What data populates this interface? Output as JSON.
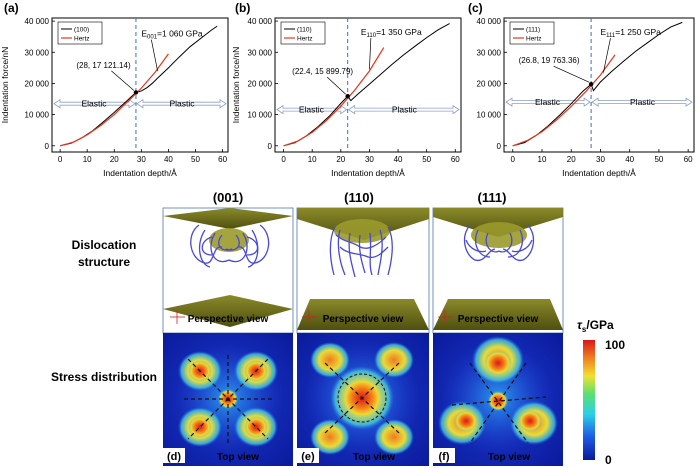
{
  "charts": [
    {
      "panel_label": "(a)",
      "legend": [
        "(100)",
        "Hertz"
      ],
      "modulus_prefix": "E",
      "modulus_sub": "001",
      "modulus_value": "=1 060 GPa",
      "point_label": "(28, 17 121.14)",
      "elastic_label": "Elastic",
      "plastic_label": "Plastic",
      "xlabel": "Indentation depth/Å",
      "ylabel": "Indentation force/nN",
      "show_ylabel": true
    },
    {
      "panel_label": "(b)",
      "legend": [
        "(110)",
        "Hertz"
      ],
      "modulus_prefix": "E",
      "modulus_sub": "110",
      "modulus_value": "=1 350 GPa",
      "point_label": "(22.4, 15 899.79)",
      "elastic_label": "Elastic",
      "plastic_label": "Plastic",
      "xlabel": "Indentation depth/Å",
      "ylabel": "Indentation force/nN",
      "show_ylabel": true
    },
    {
      "panel_label": "(c)",
      "legend": [
        "(111)",
        "Hertz"
      ],
      "modulus_prefix": "E",
      "modulus_sub": "111",
      "modulus_value": "=1 250 GPa",
      "point_label": "(26.8, 19 763.36)",
      "elastic_label": "Elastic",
      "plastic_label": "Plastic",
      "xlabel": "Indentation depth/Å",
      "ylabel": "Indentation force/nN",
      "show_ylabel": false
    }
  ],
  "chart_data": [
    {
      "type": "line",
      "title": "",
      "xlabel": "Indentation depth/Å",
      "ylabel": "Indentation force/nN",
      "xlim": [
        -3,
        62
      ],
      "ylim": [
        -2000,
        41000
      ],
      "xticks": [
        0,
        10,
        20,
        30,
        40,
        50,
        60
      ],
      "yticks": [
        0,
        10000,
        20000,
        30000,
        40000
      ],
      "ytick_labels": [
        "0",
        "10 000",
        "20 000",
        "30 000",
        "40 000"
      ],
      "series": [
        {
          "name": "(100)",
          "color": "#000000",
          "x": [
            0,
            4,
            8,
            12,
            16,
            20,
            24,
            28,
            30,
            32,
            34,
            36,
            40,
            44,
            48,
            52,
            56,
            58
          ],
          "y": [
            0,
            800,
            2500,
            4800,
            7700,
            10700,
            13900,
            17100,
            17600,
            18600,
            20000,
            21700,
            25000,
            28500,
            31800,
            34500,
            37200,
            38400
          ]
        },
        {
          "name": "Hertz",
          "color": "#e8341c",
          "x": [
            0,
            5,
            10,
            15,
            20,
            25,
            30,
            35,
            40
          ],
          "y": [
            0,
            1200,
            3500,
            6500,
            10000,
            14200,
            18500,
            23500,
            29500
          ]
        }
      ],
      "vline_x": 28
    },
    {
      "type": "line",
      "title": "",
      "xlabel": "Indentation depth/Å",
      "ylabel": "Indentation force/nN",
      "xlim": [
        -3,
        62
      ],
      "ylim": [
        -2000,
        41000
      ],
      "xticks": [
        0,
        10,
        20,
        30,
        40,
        50,
        60
      ],
      "yticks": [
        0,
        10000,
        20000,
        30000,
        40000
      ],
      "ytick_labels": [
        "0",
        "10 000",
        "20 000",
        "30 000",
        "40 000"
      ],
      "series": [
        {
          "name": "(110)",
          "color": "#000000",
          "x": [
            0,
            4,
            8,
            12,
            16,
            20,
            22.4,
            23.5,
            26,
            30,
            34,
            38,
            42,
            46,
            50,
            54,
            58
          ],
          "y": [
            0,
            1000,
            3200,
            6100,
            9500,
            13600,
            15900,
            14500,
            16600,
            19800,
            23000,
            26200,
            29200,
            32000,
            34700,
            37200,
            39200
          ]
        },
        {
          "name": "Hertz",
          "color": "#e8341c",
          "x": [
            0,
            5,
            10,
            15,
            20,
            25,
            30,
            35
          ],
          "y": [
            0,
            1500,
            4300,
            8100,
            12700,
            18000,
            24000,
            31500
          ]
        }
      ],
      "vline_x": 22.4
    },
    {
      "type": "line",
      "title": "",
      "xlabel": "Indentation depth/Å",
      "ylabel": "",
      "xlim": [
        -3,
        62
      ],
      "ylim": [
        -2000,
        41000
      ],
      "xticks": [
        0,
        10,
        20,
        30,
        40,
        50,
        60
      ],
      "yticks": [
        0,
        10000,
        20000,
        30000,
        40000
      ],
      "ytick_labels": [
        "0",
        "10 000",
        "20 000",
        "30 000",
        "40 000"
      ],
      "series": [
        {
          "name": "(111)",
          "color": "#000000",
          "x": [
            0,
            4,
            8,
            12,
            16,
            20,
            24,
            26.8,
            27.6,
            30,
            34,
            38,
            42,
            46,
            50,
            54,
            58
          ],
          "y": [
            0,
            1000,
            3300,
            6300,
            9800,
            13500,
            17500,
            19760,
            17700,
            20500,
            24000,
            27200,
            30300,
            33000,
            35700,
            38100,
            39600
          ]
        },
        {
          "name": "Hertz",
          "color": "#e8341c",
          "x": [
            0,
            5,
            10,
            15,
            20,
            25,
            30,
            35
          ],
          "y": [
            0,
            1700,
            4500,
            8300,
            12600,
            17400,
            22700,
            29200
          ]
        }
      ],
      "vline_x": 26.8
    }
  ],
  "bottom": {
    "columns": [
      "(001)",
      "(110)",
      "(111)"
    ],
    "row_dislocation": "Dislocation structure",
    "row_stress": "Stress distribution",
    "perspective_label": "Perspective view",
    "top_view_label": "Top view",
    "panel_letters": [
      "(d)",
      "(e)",
      "(f)"
    ],
    "colorbar_title": "τ",
    "colorbar_sub": "s",
    "colorbar_unit": "/GPa",
    "colorbar_max": "100",
    "colorbar_min": "0",
    "colors": {
      "indenter": "#5a5a14",
      "indenter_light": "#7d7d22",
      "dislocation": "#4848d8",
      "frame": "#7090c0"
    }
  }
}
